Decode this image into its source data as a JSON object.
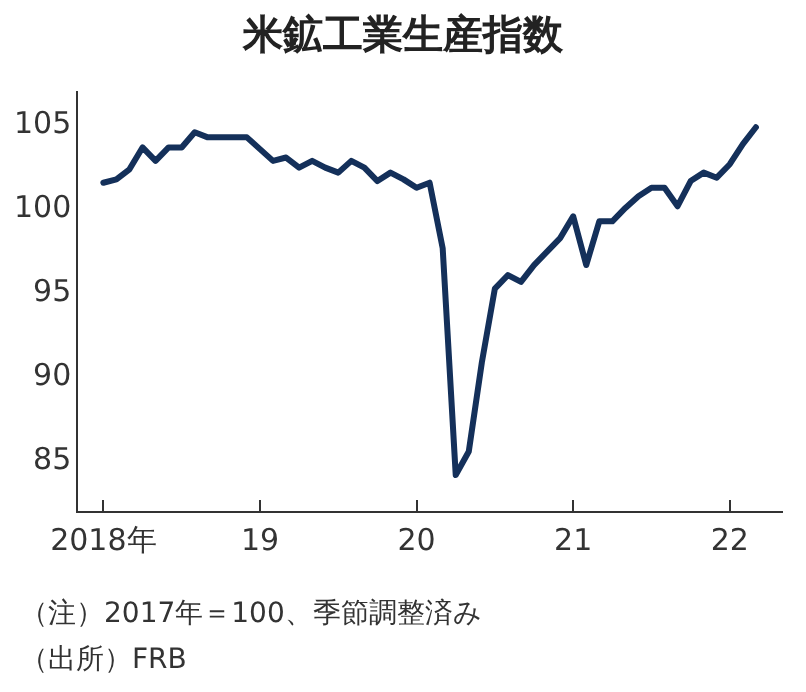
{
  "chart_data": {
    "type": "line",
    "title": "米鉱工業生産指数",
    "x": [
      "2018-01",
      "2018-02",
      "2018-03",
      "2018-04",
      "2018-05",
      "2018-06",
      "2018-07",
      "2018-08",
      "2018-09",
      "2018-10",
      "2018-11",
      "2018-12",
      "2019-01",
      "2019-02",
      "2019-03",
      "2019-04",
      "2019-05",
      "2019-06",
      "2019-07",
      "2019-08",
      "2019-09",
      "2019-10",
      "2019-11",
      "2019-12",
      "2020-01",
      "2020-02",
      "2020-03",
      "2020-04",
      "2020-05",
      "2020-06",
      "2020-07",
      "2020-08",
      "2020-09",
      "2020-10",
      "2020-11",
      "2020-12",
      "2021-01",
      "2021-02",
      "2021-03",
      "2021-04",
      "2021-05",
      "2021-06",
      "2021-07",
      "2021-08",
      "2021-09",
      "2021-10",
      "2021-11",
      "2021-12",
      "2022-01",
      "2022-02",
      "2022-03"
    ],
    "series": [
      {
        "color": "#14305a",
        "values": [
          101.6,
          101.8,
          102.4,
          103.7,
          102.9,
          103.7,
          103.7,
          104.6,
          104.3,
          104.3,
          104.3,
          104.3,
          103.6,
          102.9,
          103.1,
          102.5,
          102.9,
          102.5,
          102.2,
          102.9,
          102.5,
          101.7,
          102.2,
          101.8,
          101.3,
          101.6,
          97.7,
          84.2,
          85.6,
          90.9,
          95.3,
          96.1,
          95.7,
          96.7,
          97.5,
          98.3,
          99.6,
          96.7,
          99.3,
          99.3,
          100.1,
          100.8,
          101.3,
          101.3,
          100.2,
          101.7,
          102.2,
          101.9,
          102.7,
          103.9,
          104.9
        ]
      }
    ],
    "xlim": [
      "2017-11",
      "2022-05"
    ],
    "xticks": [
      {
        "value": "2018-01",
        "label": "2018年"
      },
      {
        "value": "2019-01",
        "label": "19"
      },
      {
        "value": "2020-01",
        "label": "20"
      },
      {
        "value": "2021-01",
        "label": "21"
      },
      {
        "value": "2022-01",
        "label": "22"
      }
    ],
    "ylim": [
      82,
      107
    ],
    "yticks": [
      85,
      90,
      95,
      100,
      105
    ],
    "grid": false,
    "legend": false,
    "marker": "none",
    "line_style": "solid",
    "annotations": [
      "（注）2017年＝100、季節調整済み",
      "（出所）FRB"
    ]
  }
}
